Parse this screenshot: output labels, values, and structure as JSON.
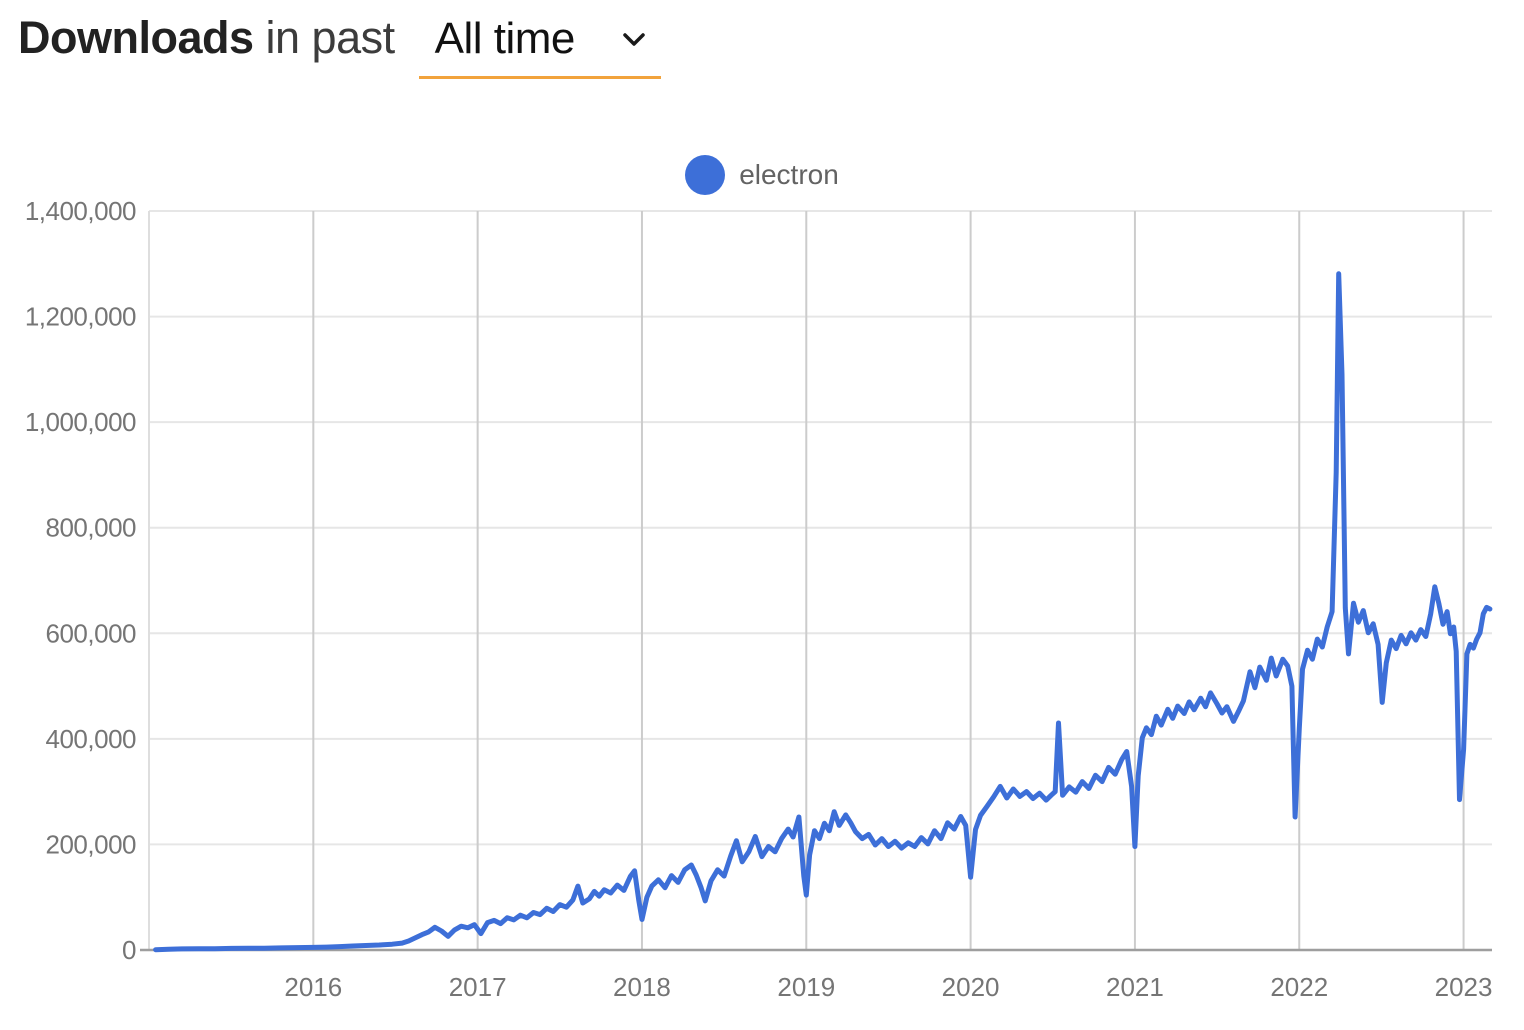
{
  "header": {
    "title_bold": "Downloads",
    "title_rest": " in past",
    "range_value": "All time"
  },
  "legend": {
    "items": [
      {
        "label": "electron",
        "color": "#3D6FD8"
      }
    ]
  },
  "colors": {
    "accent_underline": "#F2A33C",
    "series_blue": "#3D6FD8",
    "grid_h": "#e6e6e6",
    "grid_v": "#cccccc",
    "baseline": "#9e9e9e",
    "plot_edge": "#dedede"
  },
  "chart_data": {
    "type": "line",
    "title": "Downloads in past All time",
    "xlabel": "",
    "ylabel": "",
    "grid": true,
    "legend_position": "top-center",
    "xlim": [
      2015.0,
      2023.173
    ],
    "ylim": [
      0,
      1400000
    ],
    "xticks": [
      {
        "v": 2016,
        "label": "2016"
      },
      {
        "v": 2017,
        "label": "2017"
      },
      {
        "v": 2018,
        "label": "2018"
      },
      {
        "v": 2019,
        "label": "2019"
      },
      {
        "v": 2020,
        "label": "2020"
      },
      {
        "v": 2021,
        "label": "2021"
      },
      {
        "v": 2022,
        "label": "2022"
      },
      {
        "v": 2023,
        "label": "2023"
      }
    ],
    "yticks": [
      {
        "v": 0,
        "label": "0"
      },
      {
        "v": 200000,
        "label": "200,000"
      },
      {
        "v": 400000,
        "label": "400,000"
      },
      {
        "v": 600000,
        "label": "600,000"
      },
      {
        "v": 800000,
        "label": "800,000"
      },
      {
        "v": 1000000,
        "label": "1,000,000"
      },
      {
        "v": 1200000,
        "label": "1,200,000"
      },
      {
        "v": 1400000,
        "label": "1,400,000"
      }
    ],
    "series": [
      {
        "name": "electron",
        "color": "#3D6FD8",
        "points": [
          [
            2015.04,
            500
          ],
          [
            2015.12,
            1500
          ],
          [
            2015.2,
            2000
          ],
          [
            2015.3,
            2500
          ],
          [
            2015.4,
            2500
          ],
          [
            2015.5,
            3000
          ],
          [
            2015.6,
            3500
          ],
          [
            2015.7,
            3500
          ],
          [
            2015.8,
            4000
          ],
          [
            2015.9,
            4500
          ],
          [
            2016.0,
            5000
          ],
          [
            2016.08,
            5500
          ],
          [
            2016.16,
            6500
          ],
          [
            2016.24,
            7500
          ],
          [
            2016.32,
            8500
          ],
          [
            2016.4,
            9500
          ],
          [
            2016.48,
            11000
          ],
          [
            2016.54,
            13000
          ],
          [
            2016.58,
            17000
          ],
          [
            2016.62,
            23000
          ],
          [
            2016.66,
            29000
          ],
          [
            2016.7,
            34000
          ],
          [
            2016.74,
            43000
          ],
          [
            2016.78,
            36000
          ],
          [
            2016.82,
            26000
          ],
          [
            2016.86,
            38000
          ],
          [
            2016.9,
            45000
          ],
          [
            2016.94,
            42000
          ],
          [
            2016.98,
            48000
          ],
          [
            2017.02,
            31000
          ],
          [
            2017.06,
            52000
          ],
          [
            2017.1,
            56000
          ],
          [
            2017.14,
            50000
          ],
          [
            2017.18,
            61000
          ],
          [
            2017.22,
            57000
          ],
          [
            2017.26,
            66000
          ],
          [
            2017.3,
            61000
          ],
          [
            2017.34,
            71000
          ],
          [
            2017.38,
            67000
          ],
          [
            2017.42,
            79000
          ],
          [
            2017.46,
            73000
          ],
          [
            2017.5,
            86000
          ],
          [
            2017.54,
            81000
          ],
          [
            2017.58,
            95000
          ],
          [
            2017.61,
            121000
          ],
          [
            2017.64,
            89000
          ],
          [
            2017.68,
            97000
          ],
          [
            2017.71,
            111000
          ],
          [
            2017.74,
            102000
          ],
          [
            2017.77,
            114000
          ],
          [
            2017.81,
            108000
          ],
          [
            2017.85,
            123000
          ],
          [
            2017.89,
            113000
          ],
          [
            2017.93,
            140000
          ],
          [
            2017.955,
            150000
          ],
          [
            2017.98,
            95000
          ],
          [
            2018.0,
            58000
          ],
          [
            2018.03,
            100000
          ],
          [
            2018.06,
            121000
          ],
          [
            2018.1,
            133000
          ],
          [
            2018.14,
            118000
          ],
          [
            2018.18,
            141000
          ],
          [
            2018.22,
            128000
          ],
          [
            2018.26,
            152000
          ],
          [
            2018.3,
            161000
          ],
          [
            2018.33,
            142000
          ],
          [
            2018.36,
            118000
          ],
          [
            2018.385,
            93000
          ],
          [
            2018.42,
            131000
          ],
          [
            2018.46,
            152000
          ],
          [
            2018.5,
            140000
          ],
          [
            2018.54,
            178000
          ],
          [
            2018.575,
            207000
          ],
          [
            2018.61,
            167000
          ],
          [
            2018.65,
            186000
          ],
          [
            2018.69,
            215000
          ],
          [
            2018.73,
            177000
          ],
          [
            2018.77,
            196000
          ],
          [
            2018.81,
            186000
          ],
          [
            2018.85,
            211000
          ],
          [
            2018.89,
            229000
          ],
          [
            2018.92,
            214000
          ],
          [
            2018.955,
            252000
          ],
          [
            2018.985,
            140000
          ],
          [
            2019.0,
            104000
          ],
          [
            2019.02,
            180000
          ],
          [
            2019.05,
            226000
          ],
          [
            2019.08,
            211000
          ],
          [
            2019.11,
            240000
          ],
          [
            2019.14,
            226000
          ],
          [
            2019.17,
            262000
          ],
          [
            2019.2,
            236000
          ],
          [
            2019.24,
            256000
          ],
          [
            2019.27,
            241000
          ],
          [
            2019.3,
            224000
          ],
          [
            2019.34,
            211000
          ],
          [
            2019.38,
            219000
          ],
          [
            2019.42,
            199000
          ],
          [
            2019.46,
            211000
          ],
          [
            2019.5,
            196000
          ],
          [
            2019.54,
            206000
          ],
          [
            2019.58,
            193000
          ],
          [
            2019.62,
            203000
          ],
          [
            2019.66,
            196000
          ],
          [
            2019.7,
            213000
          ],
          [
            2019.74,
            201000
          ],
          [
            2019.78,
            226000
          ],
          [
            2019.82,
            211000
          ],
          [
            2019.86,
            241000
          ],
          [
            2019.9,
            229000
          ],
          [
            2019.94,
            253000
          ],
          [
            2019.97,
            236000
          ],
          [
            2020.0,
            138000
          ],
          [
            2020.03,
            228000
          ],
          [
            2020.06,
            255000
          ],
          [
            2020.1,
            272000
          ],
          [
            2020.14,
            290000
          ],
          [
            2020.18,
            310000
          ],
          [
            2020.22,
            288000
          ],
          [
            2020.26,
            305000
          ],
          [
            2020.3,
            291000
          ],
          [
            2020.34,
            300000
          ],
          [
            2020.38,
            287000
          ],
          [
            2020.42,
            297000
          ],
          [
            2020.46,
            284000
          ],
          [
            2020.49,
            293000
          ],
          [
            2020.515,
            300000
          ],
          [
            2020.535,
            430000
          ],
          [
            2020.56,
            293000
          ],
          [
            2020.6,
            309000
          ],
          [
            2020.64,
            299000
          ],
          [
            2020.68,
            319000
          ],
          [
            2020.72,
            306000
          ],
          [
            2020.76,
            331000
          ],
          [
            2020.8,
            319000
          ],
          [
            2020.84,
            346000
          ],
          [
            2020.88,
            333000
          ],
          [
            2020.92,
            361000
          ],
          [
            2020.95,
            376000
          ],
          [
            2020.98,
            310000
          ],
          [
            2021.0,
            196000
          ],
          [
            2021.02,
            330000
          ],
          [
            2021.045,
            402000
          ],
          [
            2021.07,
            421000
          ],
          [
            2021.1,
            408000
          ],
          [
            2021.13,
            443000
          ],
          [
            2021.16,
            426000
          ],
          [
            2021.2,
            456000
          ],
          [
            2021.23,
            439000
          ],
          [
            2021.26,
            462000
          ],
          [
            2021.3,
            448000
          ],
          [
            2021.33,
            470000
          ],
          [
            2021.36,
            455000
          ],
          [
            2021.4,
            477000
          ],
          [
            2021.43,
            461000
          ],
          [
            2021.46,
            487000
          ],
          [
            2021.5,
            466000
          ],
          [
            2021.53,
            449000
          ],
          [
            2021.56,
            461000
          ],
          [
            2021.6,
            433000
          ],
          [
            2021.63,
            452000
          ],
          [
            2021.66,
            472000
          ],
          [
            2021.7,
            527000
          ],
          [
            2021.73,
            497000
          ],
          [
            2021.76,
            536000
          ],
          [
            2021.8,
            511000
          ],
          [
            2021.83,
            553000
          ],
          [
            2021.86,
            519000
          ],
          [
            2021.9,
            551000
          ],
          [
            2021.93,
            538000
          ],
          [
            2021.955,
            500000
          ],
          [
            2021.975,
            252000
          ],
          [
            2022.0,
            420000
          ],
          [
            2022.02,
            532000
          ],
          [
            2022.05,
            568000
          ],
          [
            2022.08,
            551000
          ],
          [
            2022.11,
            589000
          ],
          [
            2022.14,
            574000
          ],
          [
            2022.17,
            612000
          ],
          [
            2022.2,
            641000
          ],
          [
            2022.225,
            905000
          ],
          [
            2022.24,
            1281000
          ],
          [
            2022.26,
            1090000
          ],
          [
            2022.28,
            648000
          ],
          [
            2022.3,
            561000
          ],
          [
            2022.33,
            657000
          ],
          [
            2022.36,
            621000
          ],
          [
            2022.39,
            643000
          ],
          [
            2022.42,
            601000
          ],
          [
            2022.45,
            618000
          ],
          [
            2022.48,
            579000
          ],
          [
            2022.505,
            469000
          ],
          [
            2022.53,
            544000
          ],
          [
            2022.56,
            587000
          ],
          [
            2022.59,
            571000
          ],
          [
            2022.62,
            596000
          ],
          [
            2022.65,
            580000
          ],
          [
            2022.68,
            601000
          ],
          [
            2022.71,
            587000
          ],
          [
            2022.74,
            607000
          ],
          [
            2022.77,
            594000
          ],
          [
            2022.8,
            637000
          ],
          [
            2022.825,
            688000
          ],
          [
            2022.85,
            656000
          ],
          [
            2022.875,
            617000
          ],
          [
            2022.9,
            641000
          ],
          [
            2022.92,
            599000
          ],
          [
            2022.94,
            612000
          ],
          [
            2022.955,
            566000
          ],
          [
            2022.975,
            285000
          ],
          [
            2023.0,
            380000
          ],
          [
            2023.02,
            561000
          ],
          [
            2023.04,
            579000
          ],
          [
            2023.06,
            572000
          ],
          [
            2023.08,
            589000
          ],
          [
            2023.1,
            601000
          ],
          [
            2023.12,
            637000
          ],
          [
            2023.14,
            649000
          ],
          [
            2023.16,
            646000
          ]
        ]
      }
    ]
  }
}
